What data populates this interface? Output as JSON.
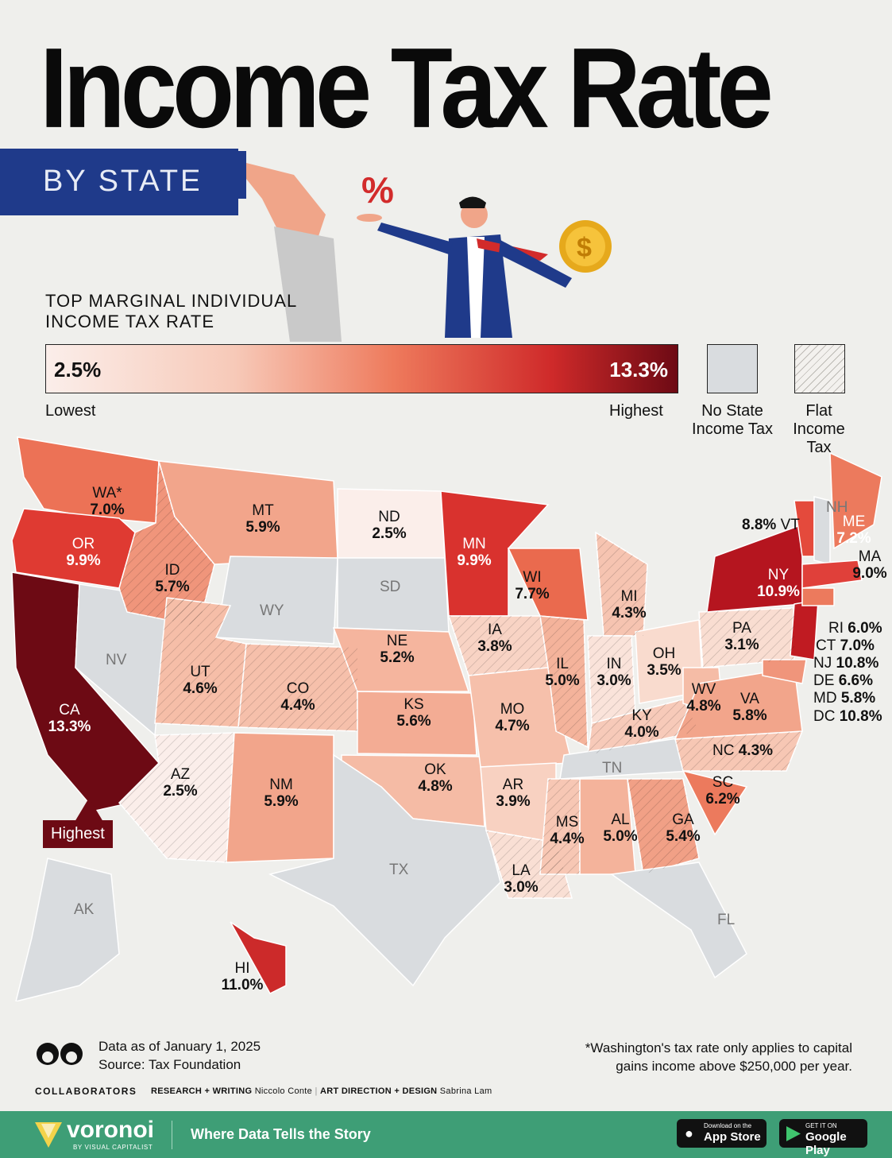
{
  "header": {
    "title": "Income Tax Rate",
    "subtitle": "BY STATE"
  },
  "legend": {
    "heading_line1": "TOP MARGINAL INDIVIDUAL",
    "heading_line2": "INCOME TAX RATE",
    "low_value": "2.5%",
    "high_value": "13.3%",
    "low_label": "Lowest",
    "high_label": "Highest",
    "no_tax_line1": "No State",
    "no_tax_line2": "Income Tax",
    "flat_line1": "Flat",
    "flat_line2": "Income",
    "flat_line3": "Tax"
  },
  "states": {
    "WA": {
      "abbr": "WA*",
      "rate": "7.0%"
    },
    "OR": {
      "abbr": "OR",
      "rate": "9.9%"
    },
    "CA": {
      "abbr": "CA",
      "rate": "13.3%"
    },
    "ID": {
      "abbr": "ID",
      "rate": "5.7%"
    },
    "MT": {
      "abbr": "MT",
      "rate": "5.9%"
    },
    "ND": {
      "abbr": "ND",
      "rate": "2.5%"
    },
    "MN": {
      "abbr": "MN",
      "rate": "9.9%"
    },
    "WI": {
      "abbr": "WI",
      "rate": "7.7%"
    },
    "MI": {
      "abbr": "MI",
      "rate": "4.3%"
    },
    "IA": {
      "abbr": "IA",
      "rate": "3.8%"
    },
    "NE": {
      "abbr": "NE",
      "rate": "5.2%"
    },
    "UT": {
      "abbr": "UT",
      "rate": "4.6%"
    },
    "CO": {
      "abbr": "CO",
      "rate": "4.4%"
    },
    "KS": {
      "abbr": "KS",
      "rate": "5.6%"
    },
    "IL": {
      "abbr": "IL",
      "rate": "5.0%"
    },
    "IN": {
      "abbr": "IN",
      "rate": "3.0%"
    },
    "OH": {
      "abbr": "OH",
      "rate": "3.5%"
    },
    "PA": {
      "abbr": "PA",
      "rate": "3.1%"
    },
    "NY": {
      "abbr": "NY",
      "rate": "10.9%"
    },
    "ME": {
      "abbr": "ME",
      "rate": "7.2%"
    },
    "MA": {
      "abbr": "MA",
      "rate": "9.0%"
    },
    "VT": {
      "abbr": "VT",
      "rate": "8.8%"
    },
    "RI": {
      "abbr": "RI",
      "rate": "6.0%"
    },
    "CT": {
      "abbr": "CT",
      "rate": "7.0%"
    },
    "NJ": {
      "abbr": "NJ",
      "rate": "10.8%"
    },
    "DE": {
      "abbr": "DE",
      "rate": "6.6%"
    },
    "MD": {
      "abbr": "MD",
      "rate": "5.8%"
    },
    "DC": {
      "abbr": "DC",
      "rate": "10.8%"
    },
    "MO": {
      "abbr": "MO",
      "rate": "4.7%"
    },
    "KY": {
      "abbr": "KY",
      "rate": "4.0%"
    },
    "WV": {
      "abbr": "WV",
      "rate": "4.8%"
    },
    "VA": {
      "abbr": "VA",
      "rate": "5.8%"
    },
    "NC": {
      "abbr": "NC",
      "rate": "4.3%"
    },
    "SC": {
      "abbr": "SC",
      "rate": "6.2%"
    },
    "GA": {
      "abbr": "GA",
      "rate": "5.4%"
    },
    "AL": {
      "abbr": "AL",
      "rate": "5.0%"
    },
    "MS": {
      "abbr": "MS",
      "rate": "4.4%"
    },
    "AR": {
      "abbr": "AR",
      "rate": "3.9%"
    },
    "LA": {
      "abbr": "LA",
      "rate": "3.0%"
    },
    "OK": {
      "abbr": "OK",
      "rate": "4.8%"
    },
    "NM": {
      "abbr": "NM",
      "rate": "5.9%"
    },
    "AZ": {
      "abbr": "AZ",
      "rate": "2.5%"
    },
    "HI": {
      "abbr": "HI",
      "rate": "11.0%"
    }
  },
  "no_tax_states": {
    "NV": "NV",
    "WY": "WY",
    "SD": "SD",
    "TX": "TX",
    "TN": "TN",
    "FL": "FL",
    "AK": "AK",
    "NH": "NH"
  },
  "map_tag": "Highest",
  "notes": {
    "data_date": "Data as of January 1, 2025",
    "source": "Source: Tax Foundation",
    "footnote_line1": "*Washington's tax rate only applies to capital",
    "footnote_line2": "gains income above $250,000 per year."
  },
  "credits": {
    "collaborators": "COLLABORATORS",
    "research_label": "RESEARCH + WRITING",
    "research_name": "Niccolo Conte",
    "design_label": "ART DIRECTION + DESIGN",
    "design_name": "Sabrina Lam"
  },
  "footer": {
    "brand": "voronoi",
    "brand_sub": "BY VISUAL CAPITALIST",
    "tagline": "Where Data Tells the Story",
    "appstore_small": "Download on the",
    "appstore_big": "App Store",
    "gplay_small": "GET IT ON",
    "gplay_big": "Google Play"
  },
  "colors": {
    "lowest": "#fbeeea",
    "highest": "#6d0a14",
    "no_tax": "#d9dcdf",
    "footer": "#3e9e76",
    "accent_blue": "#1f3a8a"
  }
}
